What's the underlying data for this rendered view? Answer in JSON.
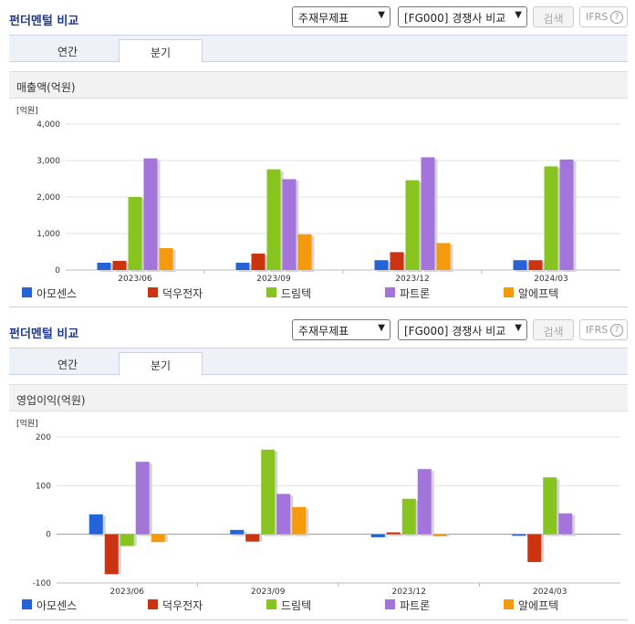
{
  "sections": [
    {
      "title": "펀더멘털 비교",
      "select1": "주재무제표",
      "select2": "[FG000] 경쟁사 비교",
      "search_label": "검색",
      "ifrs_label": "IFRS",
      "ifrs_help": "?",
      "tabs": [
        {
          "label": "연간",
          "active": false
        },
        {
          "label": "분기",
          "active": true
        }
      ],
      "metric_label": "매출액(억원)"
    },
    {
      "title": "펀더멘털 비교",
      "select1": "주재무제표",
      "select2": "[FG000] 경쟁사 비교",
      "search_label": "검색",
      "ifrs_label": "IFRS",
      "ifrs_help": "?",
      "tabs": [
        {
          "label": "연간",
          "active": false
        },
        {
          "label": "분기",
          "active": true
        }
      ],
      "metric_label": "영업이익(억원)"
    }
  ],
  "legend_colors": [
    "#2563d8",
    "#cc3311",
    "#88c420",
    "#a375db",
    "#f59a0c"
  ],
  "chart_data": [
    {
      "type": "bar",
      "unit_label": "[억원]",
      "categories": [
        "2023/06",
        "2023/09",
        "2023/12",
        "2024/03"
      ],
      "ylim": [
        0,
        4000
      ],
      "yticks": [
        0,
        1000,
        2000,
        3000,
        4000
      ],
      "ytick_labels": [
        "0",
        "1,000",
        "2,000",
        "3,000",
        "4,000"
      ],
      "grid": true,
      "legend_position": "bottom",
      "series": [
        {
          "name": "아모센스",
          "values": [
            200,
            200,
            270,
            270
          ]
        },
        {
          "name": "덕우전자",
          "values": [
            250,
            450,
            490,
            270
          ]
        },
        {
          "name": "드림텍",
          "values": [
            2000,
            2760,
            2460,
            2840
          ]
        },
        {
          "name": "파트론",
          "values": [
            3060,
            2490,
            3090,
            3030
          ]
        },
        {
          "name": "알에프텍",
          "values": [
            600,
            980,
            740,
            null
          ]
        }
      ]
    },
    {
      "type": "bar",
      "unit_label": "[억원]",
      "categories": [
        "2023/06",
        "2023/09",
        "2023/12",
        "2024/03"
      ],
      "ylim": [
        -100,
        200
      ],
      "yticks": [
        -100,
        0,
        100,
        200
      ],
      "ytick_labels": [
        "-100",
        "0",
        "100",
        "200"
      ],
      "grid": true,
      "legend_position": "bottom",
      "series": [
        {
          "name": "아모센스",
          "values": [
            41,
            9,
            -6,
            -3
          ]
        },
        {
          "name": "덕우전자",
          "values": [
            -82,
            -15,
            4,
            -57
          ]
        },
        {
          "name": "드림텍",
          "values": [
            -24,
            174,
            73,
            117
          ]
        },
        {
          "name": "파트론",
          "values": [
            149,
            83,
            134,
            43
          ]
        },
        {
          "name": "알에프텍",
          "values": [
            -16,
            56,
            -4,
            null
          ]
        }
      ]
    }
  ]
}
